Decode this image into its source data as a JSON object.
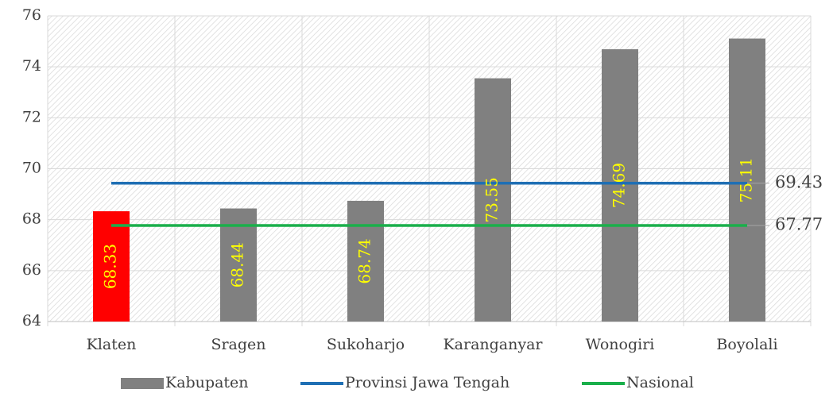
{
  "chart_data": {
    "type": "bar",
    "categories": [
      "Klaten",
      "Sragen",
      "Sukoharjo",
      "Karanganyar",
      "Wonogiri",
      "Boyolali"
    ],
    "series": [
      {
        "name": "Kabupaten",
        "type": "bar",
        "color": "#808080",
        "point_colors": [
          "#ff0000",
          "#808080",
          "#808080",
          "#808080",
          "#808080",
          "#808080"
        ],
        "label_color": "#ffff00",
        "values": [
          68.33,
          68.44,
          68.74,
          73.55,
          74.69,
          75.11
        ]
      },
      {
        "name": "Provinsi Jawa Tengah",
        "type": "line",
        "color": "#1f6fb4",
        "values": [
          69.43,
          69.43,
          69.43,
          69.43,
          69.43,
          69.43
        ]
      },
      {
        "name": "Nasional",
        "type": "line",
        "color": "#1aaf4b",
        "values": [
          67.77,
          67.77,
          67.77,
          67.77,
          67.77,
          67.77
        ]
      }
    ],
    "ylim": [
      64,
      76
    ],
    "yticks": [
      64,
      66,
      68,
      70,
      72,
      74,
      76
    ],
    "grid": true,
    "legend": "bottom"
  }
}
